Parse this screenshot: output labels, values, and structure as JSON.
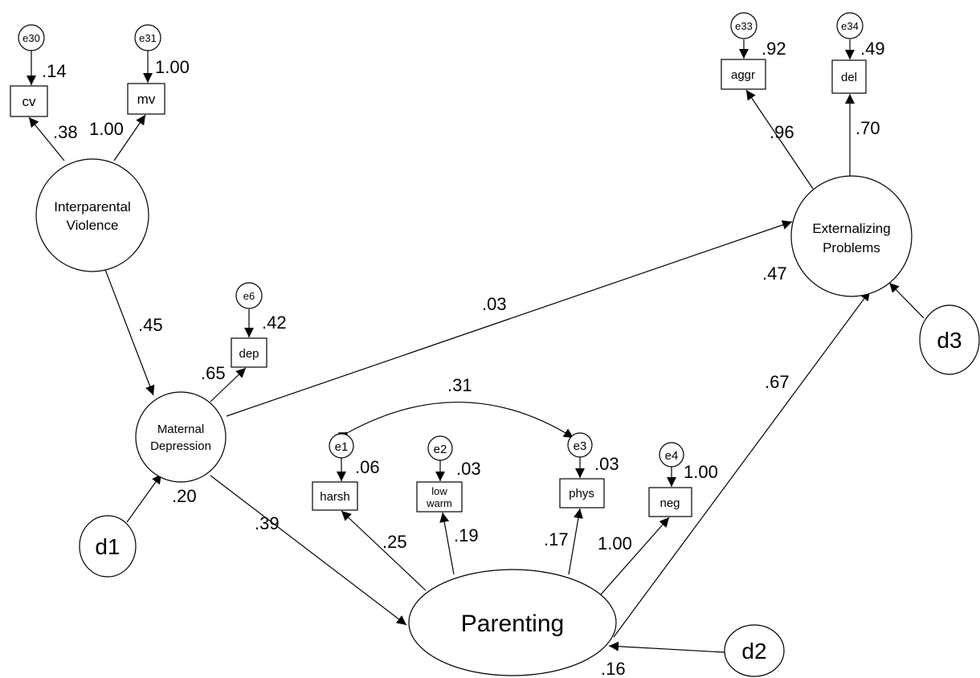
{
  "latents": {
    "violence": [
      "Interparental",
      "Violence"
    ],
    "depression": [
      "Maternal",
      "Depression"
    ],
    "externalizing": [
      "Externalizing",
      "Problems"
    ],
    "parenting": "Parenting"
  },
  "indicators": {
    "cv": "cv",
    "mv": "mv",
    "dep": "dep",
    "aggr": "aggr",
    "del": "del",
    "harsh": "harsh",
    "lowwarm": [
      "low",
      "warm"
    ],
    "phys": "phys",
    "neg": "neg"
  },
  "errors": {
    "e30": "e30",
    "e31": "e31",
    "e33": "e33",
    "e34": "e34",
    "e6": "e6",
    "e1": "e1",
    "e2": "e2",
    "e3": "e3",
    "e4": "e4"
  },
  "disturbances": {
    "d1": "d1",
    "d2": "d2",
    "d3": "d3"
  },
  "coefficients": {
    "cv_r2": ".14",
    "mv_r2": "1.00",
    "cv_load": ".38",
    "mv_load": "1.00",
    "viol_dep": ".45",
    "dep_load": ".65",
    "dep_r2": ".42",
    "dep_ext": ".03",
    "aggr_r2": ".92",
    "del_r2": ".49",
    "aggr_load": ".96",
    "del_load": ".70",
    "ext_r2": ".47",
    "par_ext": ".67",
    "e1_e3": ".31",
    "harsh_r2": ".06",
    "lowwarm_r2": ".03",
    "phys_r2": ".03",
    "neg_r2": "1.00",
    "harsh_load": ".25",
    "lowwarm_load": ".19",
    "phys_load": ".17",
    "neg_load": "1.00",
    "dep_r2_latent": ".20",
    "dep_par": ".39",
    "par_r2": ".16"
  }
}
